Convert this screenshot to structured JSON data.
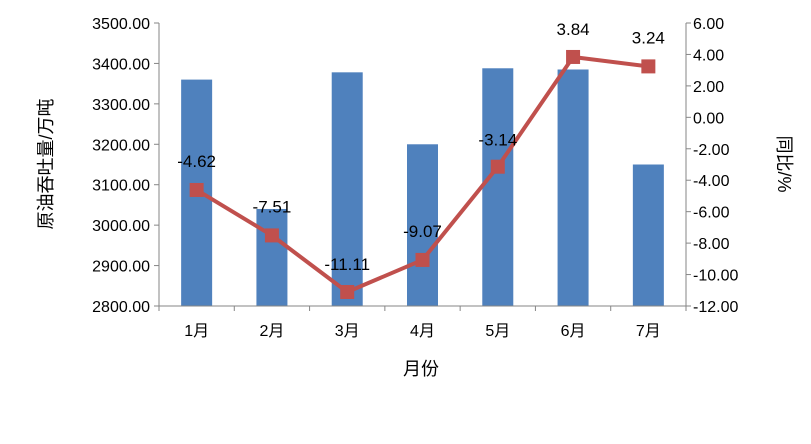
{
  "chart_data": {
    "type": "bar+line",
    "categories": [
      "1月",
      "2月",
      "3月",
      "4月",
      "5月",
      "6月",
      "7月"
    ],
    "xlabel": "月份",
    "ylabel_left": "原油吞吐量/万吨",
    "ylabel_right": "同比/%",
    "y_left": {
      "min": 2800,
      "max": 3500,
      "step": 100,
      "ticks": [
        "2800.00",
        "2900.00",
        "3000.00",
        "3100.00",
        "3200.00",
        "3300.00",
        "3400.00",
        "3500.00"
      ]
    },
    "y_right": {
      "min": -12,
      "max": 6,
      "step": 2,
      "ticks": [
        "-12.00",
        "-10.00",
        "-8.00",
        "-6.00",
        "-4.00",
        "-2.00",
        "0.00",
        "2.00",
        "4.00",
        "6.00"
      ]
    },
    "series": [
      {
        "type": "bar",
        "axis": "left",
        "color": "#4f81bd",
        "values": [
          3360,
          3040,
          3378,
          3200,
          3388,
          3385,
          3150
        ]
      },
      {
        "type": "line",
        "axis": "right",
        "color": "#c0504d",
        "values": [
          -4.62,
          -7.51,
          -11.11,
          -9.07,
          -3.14,
          3.84,
          3.24
        ],
        "labels": [
          "-4.62",
          "-7.51",
          "-11.11",
          "-9.07",
          "-3.14",
          "3.84",
          "3.24"
        ]
      }
    ],
    "grid": false,
    "legend": "none"
  }
}
